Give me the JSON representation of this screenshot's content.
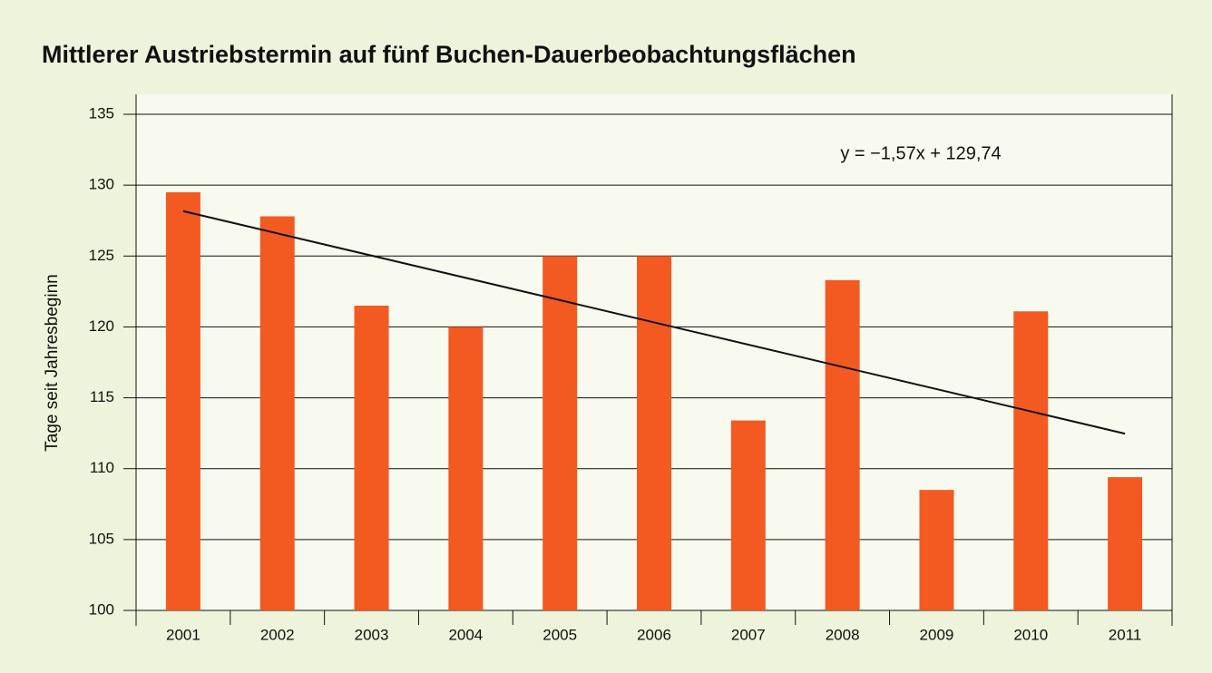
{
  "chart_data": {
    "type": "bar",
    "title": "Mittlerer Austriebstermin auf fünf Buchen-Dauerbeobachtungsflächen",
    "y_label": "Tage seit Jahresbeginn",
    "categories": [
      "2001",
      "2002",
      "2003",
      "2004",
      "2005",
      "2006",
      "2007",
      "2008",
      "2009",
      "2010",
      "2011"
    ],
    "values": [
      129.5,
      127.8,
      121.5,
      120,
      125,
      125,
      113.4,
      123.3,
      108.5,
      121.1,
      109.4
    ],
    "color": "#f25a22",
    "ylim": [
      100,
      135
    ],
    "yticks": [
      100,
      105,
      110,
      115,
      120,
      125,
      130,
      135
    ],
    "grid": true,
    "trendline": {
      "slope": -1.57,
      "intercept": 129.74,
      "label": "y = −1,57x + 129,74"
    }
  }
}
